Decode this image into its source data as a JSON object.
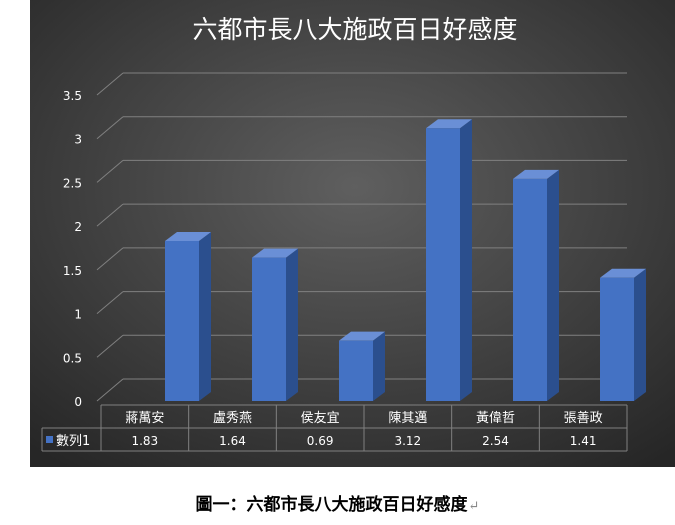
{
  "chart_data": {
    "type": "bar",
    "title": "六都市長八大施政百日好感度",
    "categories": [
      "蔣萬安",
      "盧秀燕",
      "侯友宜",
      "陳其邁",
      "黃偉哲",
      "張善政"
    ],
    "series": [
      {
        "name": "數列1",
        "values": [
          1.83,
          1.64,
          0.69,
          3.12,
          2.54,
          1.41
        ]
      }
    ],
    "value_labels": [
      "1.83",
      "1.64",
      "0.69",
      "3.12",
      "2.54",
      "1.41"
    ],
    "ylim": [
      0,
      3.5
    ],
    "yticks": [
      "0",
      "0.5",
      "1",
      "1.5",
      "2",
      "2.5",
      "3",
      "3.5"
    ],
    "ytick_values": [
      0,
      0.5,
      1,
      1.5,
      2,
      2.5,
      3,
      3.5
    ],
    "xlabel": "",
    "ylabel": "",
    "grid": true,
    "legend": "data-table",
    "style": "3d-column",
    "colors": {
      "background_center": "#5f5f5f",
      "background_edge": "#262626",
      "bar_front": "#4472c4",
      "bar_side": "#2b4f8e",
      "bar_top": "#6a8fd6",
      "text": "#ffffff",
      "grid": "#808080"
    }
  },
  "caption": {
    "text": "圖一：六都市長八大施政百日好感度",
    "mark": "↵"
  }
}
